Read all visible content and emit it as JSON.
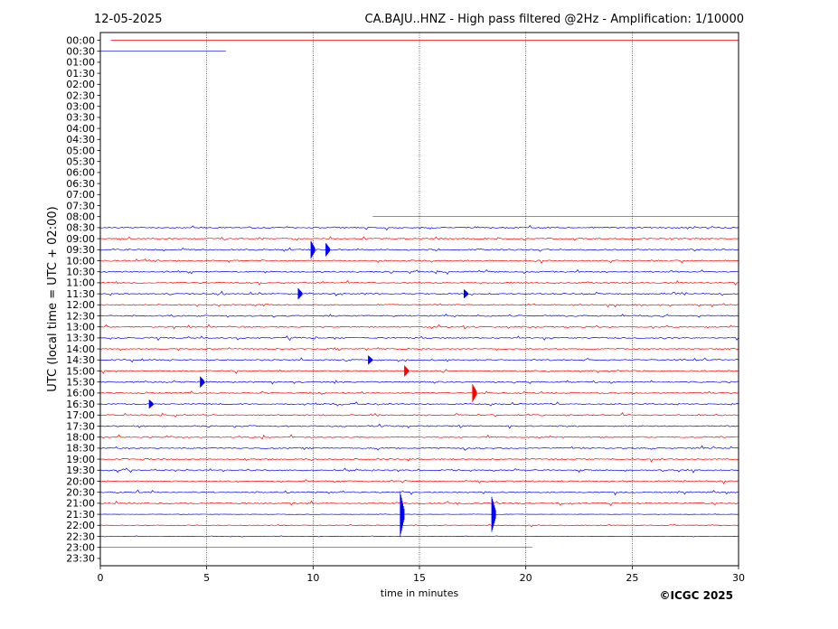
{
  "header": {
    "date": "12-05-2025",
    "title": "CA.BAJU..HNZ - High pass filtered @2Hz - Amplification: 1/10000"
  },
  "footer": {
    "copyright": "©ICGC 2025"
  },
  "chart_data": {
    "type": "line",
    "subtype": "helicorder",
    "xlabel": "time in minutes",
    "ylabel": "UTC (local time = UTC + 02:00)",
    "xlim": [
      0,
      30
    ],
    "xticks": [
      "0",
      "5",
      "10",
      "15",
      "20",
      "25",
      "30"
    ],
    "vertical_gridlines_minutes": [
      5,
      10,
      15,
      20,
      25
    ],
    "grid": "dotted vertical",
    "trace_colors": [
      "#ff0000",
      "#0000ff"
    ],
    "rows": [
      {
        "label": "00:00",
        "start": 0.5,
        "end": 30,
        "activity": 0
      },
      {
        "label": "00:30",
        "start": 0,
        "end": 5.9,
        "activity": 0
      },
      {
        "label": "01:00",
        "start": null,
        "end": null,
        "activity": 0
      },
      {
        "label": "01:30",
        "start": null,
        "end": null,
        "activity": 0
      },
      {
        "label": "02:00",
        "start": null,
        "end": null,
        "activity": 0
      },
      {
        "label": "02:30",
        "start": null,
        "end": null,
        "activity": 0
      },
      {
        "label": "03:00",
        "start": null,
        "end": null,
        "activity": 0
      },
      {
        "label": "03:30",
        "start": null,
        "end": null,
        "activity": 0
      },
      {
        "label": "04:00",
        "start": null,
        "end": null,
        "activity": 0
      },
      {
        "label": "04:30",
        "start": null,
        "end": null,
        "activity": 0
      },
      {
        "label": "05:00",
        "start": null,
        "end": null,
        "activity": 0
      },
      {
        "label": "05:30",
        "start": null,
        "end": null,
        "activity": 0
      },
      {
        "label": "06:00",
        "start": null,
        "end": null,
        "activity": 0
      },
      {
        "label": "06:30",
        "start": null,
        "end": null,
        "activity": 0
      },
      {
        "label": "07:00",
        "start": null,
        "end": null,
        "activity": 0
      },
      {
        "label": "07:30",
        "start": null,
        "end": null,
        "activity": 0
      },
      {
        "label": "08:00",
        "start": 12.8,
        "end": 30,
        "activity": 0
      },
      {
        "label": "08:30",
        "start": 0,
        "end": 30,
        "activity": 1
      },
      {
        "label": "09:00",
        "start": 0,
        "end": 30,
        "activity": 1
      },
      {
        "label": "09:30",
        "start": 0,
        "end": 30,
        "activity": 1
      },
      {
        "label": "10:00",
        "start": 0,
        "end": 30,
        "activity": 1
      },
      {
        "label": "10:30",
        "start": 0,
        "end": 30,
        "activity": 1
      },
      {
        "label": "11:00",
        "start": 0,
        "end": 30,
        "activity": 1
      },
      {
        "label": "11:30",
        "start": 0,
        "end": 30,
        "activity": 1
      },
      {
        "label": "12:00",
        "start": 0,
        "end": 30,
        "activity": 1
      },
      {
        "label": "12:30",
        "start": 0,
        "end": 30,
        "activity": 1
      },
      {
        "label": "13:00",
        "start": 0,
        "end": 30,
        "activity": 1
      },
      {
        "label": "13:30",
        "start": 0,
        "end": 30,
        "activity": 1
      },
      {
        "label": "14:00",
        "start": 0,
        "end": 30,
        "activity": 1
      },
      {
        "label": "14:30",
        "start": 0,
        "end": 30,
        "activity": 1
      },
      {
        "label": "15:00",
        "start": 0,
        "end": 30,
        "activity": 1
      },
      {
        "label": "15:30",
        "start": 0,
        "end": 30,
        "activity": 1
      },
      {
        "label": "16:00",
        "start": 0,
        "end": 30,
        "activity": 1
      },
      {
        "label": "16:30",
        "start": 0,
        "end": 30,
        "activity": 1
      },
      {
        "label": "17:00",
        "start": 0,
        "end": 30,
        "activity": 1
      },
      {
        "label": "17:30",
        "start": 0,
        "end": 30,
        "activity": 1
      },
      {
        "label": "18:00",
        "start": 0,
        "end": 30,
        "activity": 1
      },
      {
        "label": "18:30",
        "start": 0,
        "end": 30,
        "activity": 1
      },
      {
        "label": "19:00",
        "start": 0,
        "end": 30,
        "activity": 1
      },
      {
        "label": "19:30",
        "start": 0,
        "end": 30,
        "activity": 1
      },
      {
        "label": "20:00",
        "start": 0,
        "end": 30,
        "activity": 1
      },
      {
        "label": "20:30",
        "start": 0,
        "end": 30,
        "activity": 1
      },
      {
        "label": "21:00",
        "start": 0,
        "end": 30,
        "activity": 1
      },
      {
        "label": "21:30",
        "start": 0,
        "end": 30,
        "activity": 0.3
      },
      {
        "label": "22:00",
        "start": 0,
        "end": 30,
        "activity": 0.6
      },
      {
        "label": "22:30",
        "start": 0,
        "end": 30,
        "activity": 0.3
      },
      {
        "label": "23:00",
        "start": 0,
        "end": 20.3,
        "activity": 0
      },
      {
        "label": "23:30",
        "start": null,
        "end": null,
        "activity": 0
      }
    ],
    "events": [
      {
        "row": "09:30",
        "minute": 9.9,
        "amplitude": 0.8
      },
      {
        "row": "09:30",
        "minute": 10.6,
        "amplitude": 0.6
      },
      {
        "row": "11:30",
        "minute": 9.3,
        "amplitude": 0.5
      },
      {
        "row": "11:30",
        "minute": 17.1,
        "amplitude": 0.4
      },
      {
        "row": "14:30",
        "minute": 12.6,
        "amplitude": 0.4
      },
      {
        "row": "15:00",
        "minute": 14.3,
        "amplitude": 0.5
      },
      {
        "row": "15:30",
        "minute": 4.7,
        "amplitude": 0.5
      },
      {
        "row": "16:00",
        "minute": 17.5,
        "amplitude": 0.8
      },
      {
        "row": "16:30",
        "minute": 2.3,
        "amplitude": 0.4
      },
      {
        "row": "21:30",
        "minute": 14.1,
        "amplitude": 2.0
      },
      {
        "row": "21:30",
        "minute": 18.4,
        "amplitude": 1.6
      }
    ]
  }
}
